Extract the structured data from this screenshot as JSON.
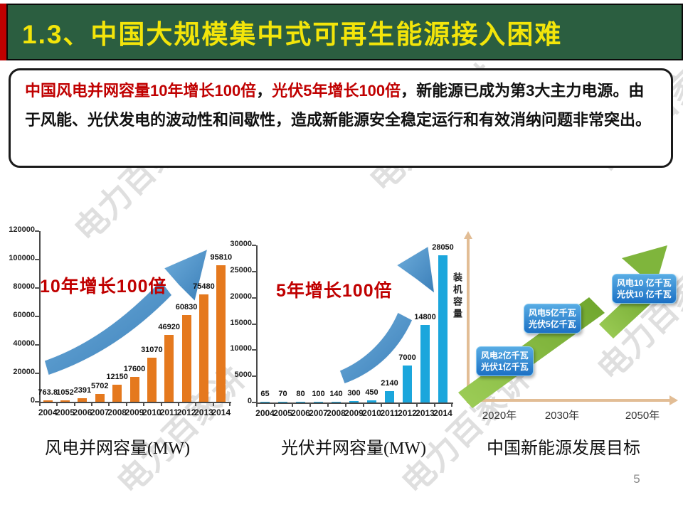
{
  "header": {
    "title": "1.3、中国大规模集中式可再生能源接入困难",
    "bg_color": "#2B5E40",
    "accent_color": "#C00000",
    "title_color": "#F3E50A"
  },
  "summary": {
    "segments": [
      {
        "text": "中国风电并网容量10年增长100倍",
        "color": "red"
      },
      {
        "text": "，",
        "color": "black"
      },
      {
        "text": "光伏5年增长100倍",
        "color": "red"
      },
      {
        "text": "，新能源已成为第3大主力电源。由于风能、光伏发电的波动性和间歇性，造成新能源安全稳定运行和有效消纳问题非常突出。",
        "color": "black"
      }
    ]
  },
  "watermark": {
    "text": "电力百家讲"
  },
  "chart_data": [
    {
      "type": "bar",
      "title": "风电并网容量(MW)",
      "annotation": "10年增长100倍",
      "categories": [
        "2004",
        "2005",
        "2006",
        "2007",
        "2008",
        "2009",
        "2010",
        "2011",
        "2012",
        "2013",
        "2014"
      ],
      "values": [
        763.8,
        1052,
        2391,
        5702,
        12150,
        17600,
        31070,
        46920,
        60830,
        75480,
        95810
      ],
      "ylim": [
        0,
        120000
      ],
      "ytick_step": 20000,
      "bar_color": "#E5791E",
      "arrow_color": "#4D92CB",
      "grid": false,
      "legend": "none"
    },
    {
      "type": "bar",
      "title": "光伏并网容量(MW)",
      "annotation": "5年增长100倍",
      "categories": [
        "2004",
        "2005",
        "2006",
        "2007",
        "2008",
        "2009",
        "2010",
        "2011",
        "2012",
        "2013",
        "2014"
      ],
      "values": [
        65,
        70,
        80,
        100,
        140,
        300,
        450,
        2140,
        7000,
        14800,
        28050
      ],
      "ylim": [
        0,
        30000
      ],
      "ytick_step": 5000,
      "bar_color": "#1BA6DC",
      "arrow_color": "#4D92CB",
      "grid": false,
      "legend": "none"
    },
    {
      "type": "diagram",
      "title": "中国新能源发展目标",
      "ylabel": "装机容量",
      "milestones": [
        {
          "year": "2020年",
          "label_lines": [
            "风电2亿千瓦",
            "光伏1亿千瓦"
          ]
        },
        {
          "year": "2030年",
          "label_lines": [
            "风电5亿千瓦",
            "光伏5亿千瓦"
          ]
        },
        {
          "year": "2050年",
          "label_lines": [
            "风电10 亿千瓦",
            "光伏10 亿千瓦"
          ]
        }
      ],
      "arrow_color": "#86BB40",
      "axis_color": "#E2BD95"
    }
  ],
  "page_number": "5"
}
